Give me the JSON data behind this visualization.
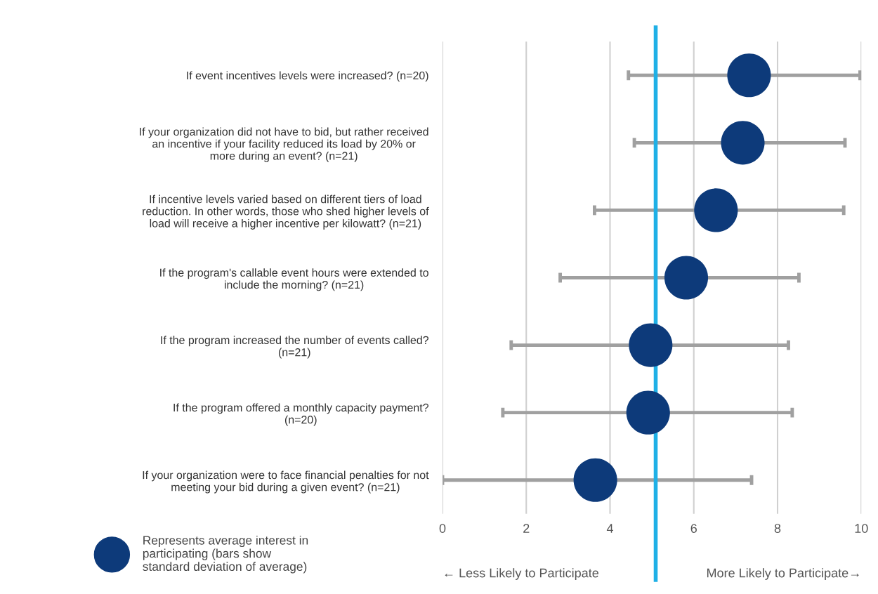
{
  "chart_data": {
    "type": "scatter",
    "categories": [
      "If event incentives levels were increased? (n=20)",
      "If your organization did not have to bid, but rather received\nan incentive if your facility reduced its load by 20% or\nmore during an event? (n=21)",
      "If incentive levels varied based on different tiers of load\nreduction. In other words, those who shed higher levels of\nload will receive a higher incentive per kilowatt? (n=21)",
      "If the program's callable event hours were extended to\ninclude the morning? (n=21)",
      "If the program increased the number of events called?\n(n=21)",
      "If the program offered a monthly capacity payment?\n(n=20)",
      "If your organization were to face financial penalties for not\nmeeting your bid during a given event? (n=21)"
    ],
    "orientation": "horizontal",
    "series": [
      {
        "name": "Represents average interest in\nparticipating (bars show\nstandard deviation of average)",
        "color": "#0d3a7a",
        "values": [
          7.32,
          7.17,
          6.53,
          5.82,
          4.97,
          4.91,
          3.65
        ],
        "errors": [
          [
            4.44,
            9.97
          ],
          [
            4.58,
            9.61
          ],
          [
            3.63,
            9.58
          ],
          [
            2.81,
            8.51
          ],
          [
            1.64,
            8.26
          ],
          [
            1.44,
            8.35
          ],
          [
            0,
            7.38
          ]
        ]
      }
    ],
    "xlim": [
      0,
      10
    ],
    "xticks": [
      0,
      2,
      4,
      6,
      8,
      10
    ],
    "ref_lines": [
      {
        "axis": "x",
        "value": 5.09,
        "color": "#1fb0e6",
        "line_style": "solid"
      }
    ],
    "annotations": [
      "← Less Likely to Participate",
      "More Likely to Participate→"
    ],
    "grid": "x",
    "marker": "circle",
    "legend": "bottom left"
  }
}
